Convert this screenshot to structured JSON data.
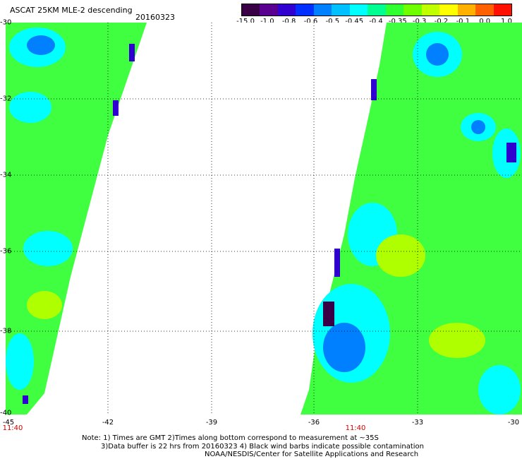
{
  "header": {
    "title": "ASCAT 25KM MLE-2 descending",
    "date": "20160323"
  },
  "colorbar": {
    "colors": [
      "#3a0046",
      "#5a0090",
      "#3000d0",
      "#0030ff",
      "#0080ff",
      "#00c0ff",
      "#00ffff",
      "#00ff90",
      "#30ff30",
      "#70ff00",
      "#c0ff00",
      "#ffff00",
      "#ffb000",
      "#ff6000",
      "#ff1000"
    ],
    "labels": [
      "-15.0",
      "-1.0",
      "-0.8",
      "-0.6",
      "-0.5",
      "-0.45",
      "-0.4",
      "-0.35",
      "-0.3",
      "-0.2",
      "-0.1",
      "0.0",
      "1.0"
    ]
  },
  "map": {
    "lat_ticks": [
      "-30",
      "-32",
      "-34",
      "-36",
      "-38",
      "-40"
    ],
    "lon_ticks": [
      "-45",
      "-42",
      "-39",
      "-36",
      "-33",
      "-30"
    ],
    "times": [
      "11:40",
      "11:40"
    ],
    "background_color": "#ffffff",
    "field_color": "#40ff40",
    "swath_colors": {
      "dominant": "#40ff40",
      "mid": "#00ffff",
      "low": "#0080ff",
      "very_low": "#3000d0",
      "min": "#3a0046",
      "high": "#b0ff00"
    }
  },
  "notes": {
    "line1": "Note: 1) Times are GMT 2)Times along bottom correspond to measurement at ~35S",
    "line2": "3)Data buffer is 22 hrs from 20160323 4) Black wind barbs indicate possible contamination",
    "line3": "NOAA/NESDIS/Center for Satellite Applications and Research"
  }
}
